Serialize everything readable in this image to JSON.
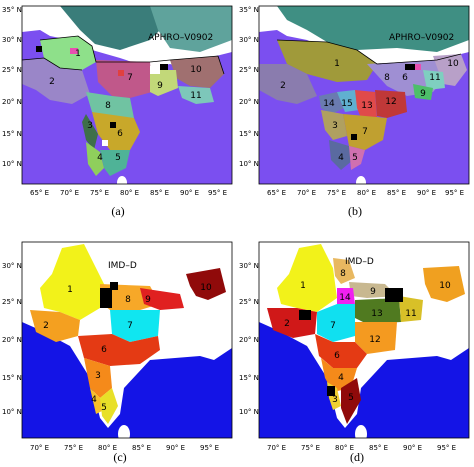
{
  "panels": [
    {
      "id": "a",
      "caption": "(a)",
      "dataset_label": "APHRO–V0902",
      "lat_ticks": [
        "10° N",
        "15° N",
        "20° N",
        "25° N",
        "30° N",
        "35° N"
      ],
      "lon_ticks": [
        "65° E",
        "70° E",
        "75° E",
        "80° E",
        "85° E",
        "90° E",
        "95° E"
      ],
      "region_labels": [
        "1",
        "2",
        "3",
        "4",
        "5",
        "6",
        "7",
        "8",
        "9",
        "10",
        "11"
      ]
    },
    {
      "id": "b",
      "caption": "(b)",
      "dataset_label": "APHRO–V0902",
      "lat_ticks": [
        "10° N",
        "15° N",
        "20° N",
        "25° N",
        "30° N",
        "35° N"
      ],
      "lon_ticks": [
        "65° E",
        "70° E",
        "75° E",
        "80° E",
        "85° E",
        "90° E",
        "95° E"
      ],
      "region_labels": [
        "1",
        "2",
        "3",
        "4",
        "5",
        "6",
        "7",
        "8",
        "9",
        "10",
        "11",
        "12",
        "13",
        "14",
        "15"
      ]
    },
    {
      "id": "c",
      "caption": "(c)",
      "dataset_label": "IMD–D",
      "lat_ticks": [
        "10° N",
        "15° N",
        "20° N",
        "25° N",
        "30° N"
      ],
      "lon_ticks": [
        "70° E",
        "75° E",
        "80° E",
        "85° E",
        "90° E",
        "95° E"
      ],
      "region_labels": [
        "1",
        "2",
        "3",
        "4",
        "5",
        "6",
        "7",
        "8",
        "9",
        "10"
      ]
    },
    {
      "id": "d",
      "caption": "(d)",
      "dataset_label": "IMD–D",
      "lat_ticks": [
        "10° N",
        "15° N",
        "20° N",
        "25° N",
        "30° N"
      ],
      "lon_ticks": [
        "70° E",
        "75° E",
        "80° E",
        "85° E",
        "90° E",
        "95° E"
      ],
      "region_labels": [
        "1",
        "2",
        "3",
        "4",
        "5",
        "6",
        "7",
        "8",
        "9",
        "10",
        "11",
        "12",
        "13",
        "14"
      ]
    }
  ],
  "colors": {
    "ocean": "#7b4ff0",
    "land_outside": "#ffffff",
    "boundary": "#000000"
  }
}
